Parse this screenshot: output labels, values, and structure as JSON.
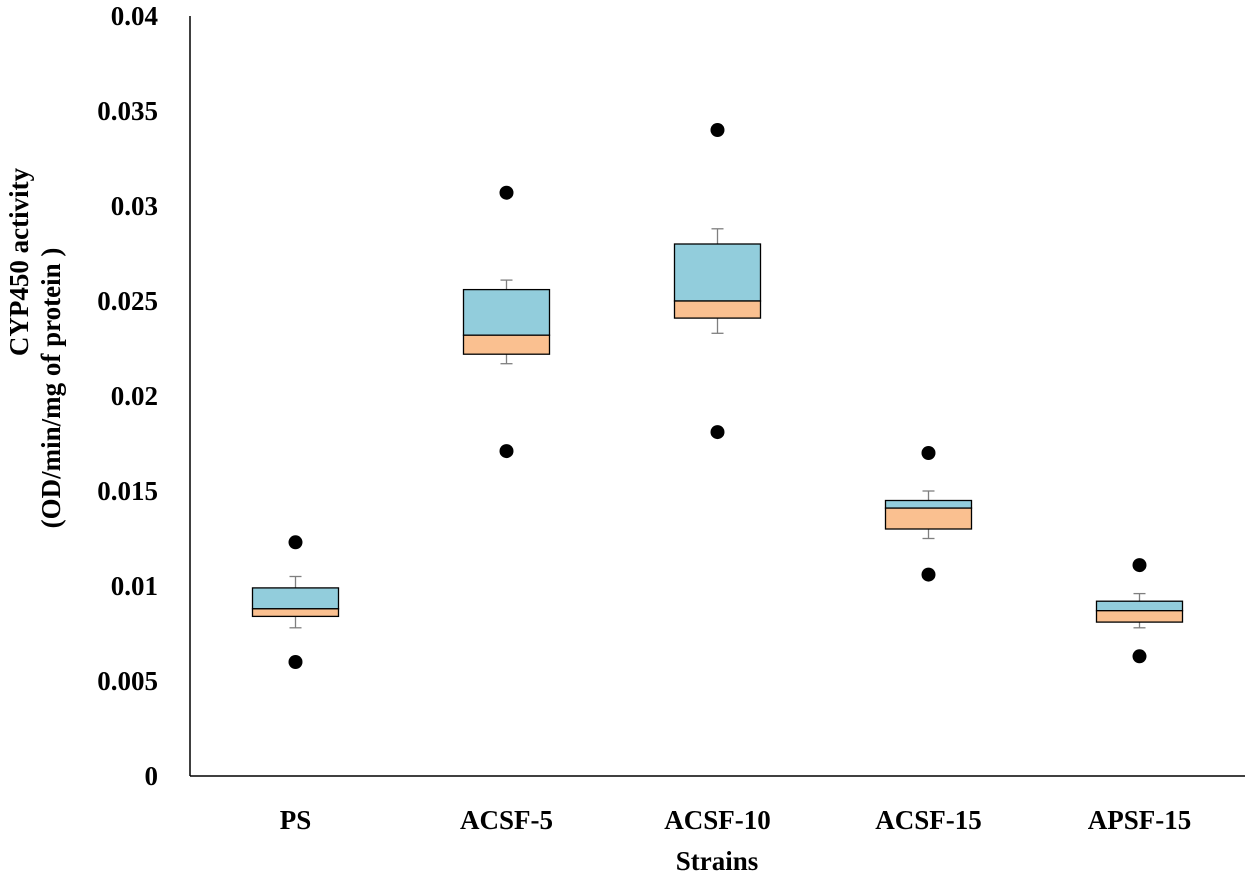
{
  "chart_data": {
    "type": "box",
    "xlabel": "Strains",
    "ylabel_lines": [
      "CYP450 activity",
      "(OD/min/mg of protein )"
    ],
    "ylim": [
      0,
      0.04
    ],
    "yticks": [
      0,
      0.005,
      0.01,
      0.015,
      0.02,
      0.025,
      0.03,
      0.035,
      0.04
    ],
    "ytick_labels": [
      "0",
      "0.005",
      "0.01",
      "0.015",
      "0.02",
      "0.025",
      "0.03",
      "0.035",
      "0.04"
    ],
    "categories": [
      "PS",
      "ACSF-5",
      "ACSF-10",
      "ACSF-15",
      "APSF-15"
    ],
    "grid": false,
    "colors": {
      "upper_box": "#92CDDC",
      "lower_box": "#FAC090",
      "outline": "#000000",
      "whisker": "#7F7F7F",
      "outlier": "#000000"
    },
    "boxes": [
      {
        "category": "PS",
        "whisker_low": 0.0078,
        "q1": 0.0084,
        "median": 0.0088,
        "q3": 0.0099,
        "whisker_high": 0.0105,
        "outliers": [
          0.006,
          0.0123
        ]
      },
      {
        "category": "ACSF-5",
        "whisker_low": 0.0217,
        "q1": 0.0222,
        "median": 0.0232,
        "q3": 0.0256,
        "whisker_high": 0.0261,
        "outliers": [
          0.0171,
          0.0307
        ]
      },
      {
        "category": "ACSF-10",
        "whisker_low": 0.0233,
        "q1": 0.0241,
        "median": 0.025,
        "q3": 0.028,
        "whisker_high": 0.0288,
        "outliers": [
          0.0181,
          0.034
        ]
      },
      {
        "category": "ACSF-15",
        "whisker_low": 0.0125,
        "q1": 0.013,
        "median": 0.0141,
        "q3": 0.0145,
        "whisker_high": 0.015,
        "outliers": [
          0.0106,
          0.017
        ]
      },
      {
        "category": "APSF-15",
        "whisker_low": 0.0078,
        "q1": 0.0081,
        "median": 0.0087,
        "q3": 0.0092,
        "whisker_high": 0.0096,
        "outliers": [
          0.0063,
          0.0111
        ]
      }
    ]
  }
}
